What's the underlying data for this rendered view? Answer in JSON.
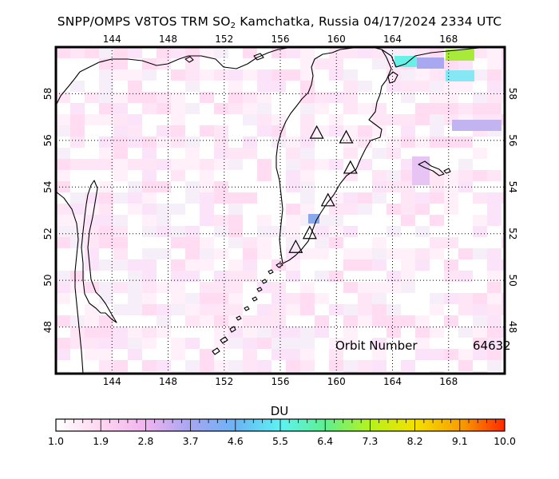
{
  "title": {
    "prefix": "SNPP/OMPS V8TOS TRM SO",
    "subscript": "2",
    "suffix": " Kamchatka, Russia 04/17/2024 2334 UTC"
  },
  "map": {
    "lon_range": [
      140,
      172
    ],
    "lat_range": [
      46,
      60
    ],
    "lon_ticks": [
      "144",
      "148",
      "152",
      "156",
      "160",
      "164",
      "168"
    ],
    "lat_ticks": [
      "48",
      "50",
      "52",
      "54",
      "56",
      "58"
    ],
    "grid": "dotted",
    "volcano_marker": "triangle-icon",
    "volcanoes": [
      {
        "lon": 158.6,
        "lat": 56.3
      },
      {
        "lon": 160.7,
        "lat": 56.1
      },
      {
        "lon": 161.0,
        "lat": 54.8
      },
      {
        "lon": 159.4,
        "lat": 53.4
      },
      {
        "lon": 158.1,
        "lat": 52.0
      },
      {
        "lon": 157.1,
        "lat": 51.4
      }
    ],
    "colors": {
      "land_outline": "#000000",
      "background": "#ffffff"
    }
  },
  "orbit": {
    "label": "Orbit Number",
    "value": "64632"
  },
  "colorbar": {
    "label": "DU",
    "ticks": [
      "1.0",
      "1.9",
      "2.8",
      "3.7",
      "4.6",
      "5.5",
      "6.4",
      "7.3",
      "8.2",
      "9.1",
      "10.0"
    ],
    "range": [
      1.0,
      10.0
    ],
    "stops": [
      "#ffffff",
      "#ffd6f0",
      "#f0b4f0",
      "#a6a6f2",
      "#6ab4f4",
      "#5ef2f2",
      "#5ef090",
      "#b6f21c",
      "#f4e000",
      "#f7a000",
      "#ff2a00"
    ]
  }
}
